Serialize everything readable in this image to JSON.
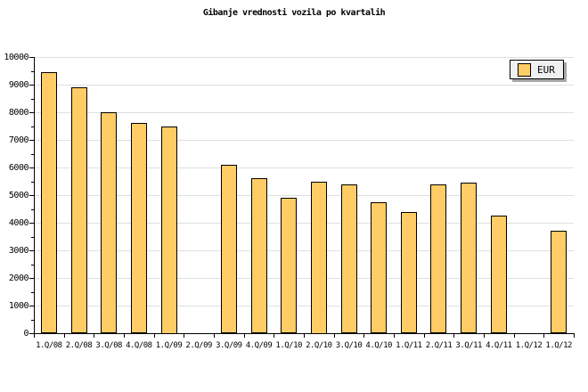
{
  "title": "Gibanje vrednosti vozila po kvartalih",
  "legend": {
    "label": "EUR"
  },
  "colors": {
    "bar_fill": "#FFCC66",
    "bar_border": "#000000",
    "gridline": "#E0E0E0",
    "axis": "#000000",
    "legend_bg": "#F0F0F0",
    "legend_shadow": "#A6A6A6",
    "background": "#FFFFFF"
  },
  "chart_data": {
    "type": "bar",
    "title": "Gibanje vrednosti vozila po kvartalih",
    "categories": [
      "1.Q/08",
      "2.Q/08",
      "3.Q/08",
      "4.Q/08",
      "1.Q/09",
      "2.Q/09",
      "3.Q/09",
      "4.Q/09",
      "1.Q/10",
      "2.Q/10",
      "3.Q/10",
      "4.Q/10",
      "1.Q/11",
      "2.Q/11",
      "3.Q/11",
      "4.Q/11",
      "1.Q/12",
      "1.Q/12"
    ],
    "series": [
      {
        "name": "EUR",
        "values": [
          9450,
          8900,
          8000,
          7600,
          7500,
          null,
          6100,
          5600,
          4900,
          5500,
          5400,
          4750,
          4400,
          5400,
          5450,
          4250,
          null,
          3700
        ]
      }
    ],
    "xlabel": "",
    "ylabel": "",
    "ylim": [
      0,
      10000
    ],
    "y_major_step": 1000,
    "y_minor_step": 500,
    "y_ticks": [
      0,
      1000,
      2000,
      3000,
      4000,
      5000,
      6000,
      7000,
      8000,
      9000,
      10000
    ],
    "grid": true,
    "legend_position": "top-right"
  }
}
